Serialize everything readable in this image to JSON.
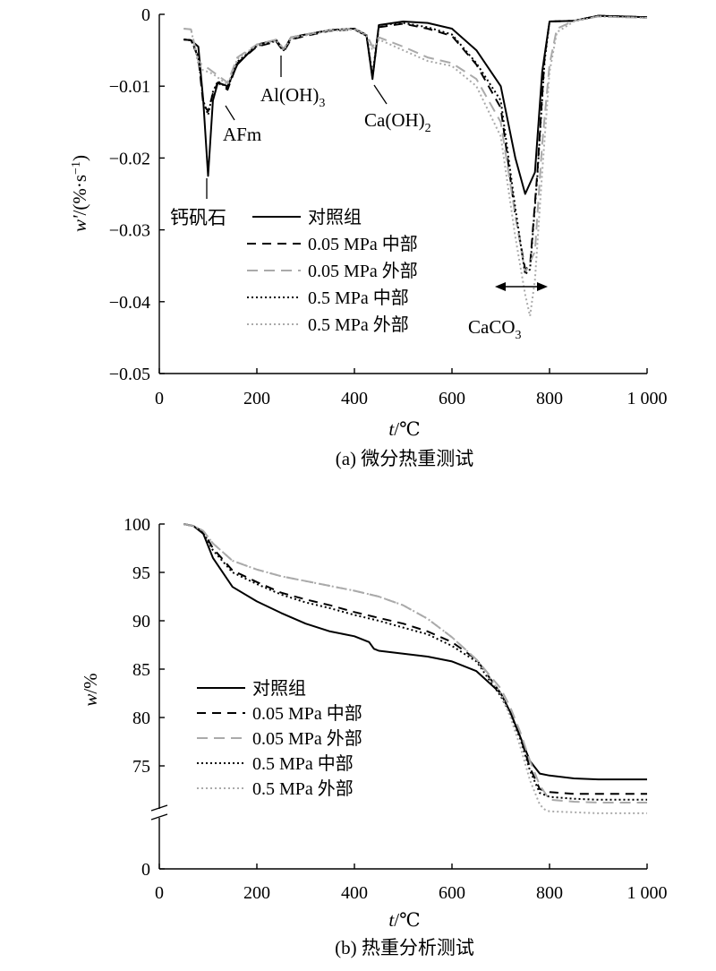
{
  "chart_data": [
    {
      "type": "line",
      "caption": "(a) 微分热重测试",
      "xlabel_var": "t",
      "xlabel_unit": "/℃",
      "ylabel_var": "w'",
      "ylabel_unit": "/(%·s",
      "ylabel_exp": "−1",
      "ylabel_close": ")",
      "xlim": [
        0,
        1000
      ],
      "ylim": [
        -0.05,
        0
      ],
      "x_ticks": [
        0,
        200,
        400,
        600,
        800,
        1000
      ],
      "x_tick_labels": [
        "0",
        "200",
        "400",
        "600",
        "800",
        "1 000"
      ],
      "y_ticks": [
        0,
        -0.01,
        -0.02,
        -0.03,
        -0.04,
        -0.05
      ],
      "y_tick_labels": [
        "0",
        "−0.01",
        "−0.02",
        "−0.03",
        "−0.04",
        "−0.05"
      ],
      "legend_position": "center",
      "annotations": {
        "ettringite": "钙矾石",
        "afm": "AFm",
        "aloh_main": "Al(OH)",
        "aloh_sub": "3",
        "caoh_main": "Ca(OH)",
        "caoh_sub": "2",
        "caco3_main": "CaCO",
        "caco3_sub": "3"
      },
      "series": [
        {
          "name": "对照组",
          "color": "#000000",
          "dash": "",
          "x": [
            50,
            65,
            80,
            90,
            100,
            110,
            120,
            140,
            160,
            200,
            240,
            255,
            270,
            300,
            350,
            400,
            425,
            437,
            450,
            500,
            550,
            600,
            650,
            700,
            730,
            750,
            770,
            785,
            800,
            850,
            900,
            950,
            1000
          ],
          "y": [
            -0.0035,
            -0.0036,
            -0.0045,
            -0.012,
            -0.0225,
            -0.012,
            -0.0095,
            -0.01,
            -0.007,
            -0.0042,
            -0.0036,
            -0.005,
            -0.0032,
            -0.0028,
            -0.0022,
            -0.002,
            -0.003,
            -0.009,
            -0.0015,
            -0.001,
            -0.0012,
            -0.002,
            -0.005,
            -0.01,
            -0.02,
            -0.025,
            -0.022,
            -0.008,
            -0.001,
            -0.0009,
            -0.0002,
            -0.0003,
            -0.0004
          ]
        },
        {
          "name": "0.05 MPa 中部",
          "color": "#000000",
          "dash": "10,7",
          "x": [
            50,
            65,
            80,
            90,
            100,
            110,
            120,
            140,
            160,
            200,
            240,
            255,
            270,
            300,
            350,
            400,
            425,
            437,
            450,
            500,
            550,
            600,
            650,
            700,
            730,
            750,
            760,
            775,
            790,
            800,
            850,
            900,
            950,
            1000
          ],
          "y": [
            -0.0035,
            -0.0036,
            -0.006,
            -0.0125,
            -0.0135,
            -0.011,
            -0.0095,
            -0.0105,
            -0.0068,
            -0.0045,
            -0.0038,
            -0.0052,
            -0.0035,
            -0.003,
            -0.0023,
            -0.0021,
            -0.003,
            -0.0088,
            -0.0018,
            -0.0013,
            -0.002,
            -0.003,
            -0.007,
            -0.013,
            -0.028,
            -0.0355,
            -0.035,
            -0.022,
            -0.006,
            -0.001,
            -0.0009,
            -0.0002,
            -0.0003,
            -0.0004
          ]
        },
        {
          "name": "0.05 MPa 外部",
          "color": "#aaaaaa",
          "dash": "12,7",
          "x": [
            50,
            65,
            80,
            90,
            100,
            110,
            120,
            140,
            160,
            200,
            240,
            255,
            270,
            300,
            350,
            400,
            425,
            437,
            450,
            500,
            550,
            600,
            650,
            700,
            730,
            750,
            770,
            785,
            800,
            815,
            850,
            900,
            950,
            1000
          ],
          "y": [
            -0.002,
            -0.0021,
            -0.0065,
            -0.0072,
            -0.0075,
            -0.008,
            -0.0085,
            -0.0095,
            -0.006,
            -0.0042,
            -0.0035,
            -0.0048,
            -0.0032,
            -0.0028,
            -0.0022,
            -0.002,
            -0.0028,
            -0.0045,
            -0.0032,
            -0.0045,
            -0.006,
            -0.0068,
            -0.009,
            -0.015,
            -0.028,
            -0.036,
            -0.033,
            -0.018,
            -0.007,
            -0.002,
            -0.0009,
            -0.0003,
            -0.0004,
            -0.0005
          ]
        },
        {
          "name": "0.5 MPa 中部",
          "color": "#000000",
          "dash": "2,3",
          "x": [
            50,
            65,
            80,
            90,
            100,
            110,
            120,
            140,
            160,
            200,
            240,
            255,
            270,
            300,
            350,
            400,
            425,
            437,
            450,
            500,
            550,
            600,
            650,
            700,
            730,
            750,
            760,
            775,
            790,
            800,
            850,
            900,
            950,
            1000
          ],
          "y": [
            -0.0035,
            -0.0036,
            -0.0058,
            -0.012,
            -0.014,
            -0.0108,
            -0.0093,
            -0.0103,
            -0.0066,
            -0.0044,
            -0.0037,
            -0.005,
            -0.0034,
            -0.0029,
            -0.0022,
            -0.002,
            -0.0029,
            -0.0085,
            -0.0015,
            -0.0012,
            -0.0018,
            -0.0028,
            -0.0068,
            -0.012,
            -0.027,
            -0.0362,
            -0.0355,
            -0.0225,
            -0.0065,
            -0.001,
            -0.0009,
            -0.0002,
            -0.0003,
            -0.0004
          ]
        },
        {
          "name": "0.5 MPa 外部",
          "color": "#aaaaaa",
          "dash": "2,3",
          "x": [
            50,
            65,
            80,
            90,
            100,
            110,
            120,
            140,
            160,
            200,
            240,
            255,
            270,
            300,
            350,
            400,
            425,
            437,
            450,
            500,
            550,
            600,
            650,
            700,
            730,
            750,
            760,
            770,
            785,
            800,
            815,
            850,
            900,
            950,
            1000
          ],
          "y": [
            -0.002,
            -0.0021,
            -0.007,
            -0.0078,
            -0.008,
            -0.0083,
            -0.0088,
            -0.0098,
            -0.0062,
            -0.0043,
            -0.0036,
            -0.005,
            -0.0033,
            -0.0029,
            -0.0023,
            -0.0021,
            -0.003,
            -0.005,
            -0.0035,
            -0.005,
            -0.0065,
            -0.0072,
            -0.01,
            -0.017,
            -0.031,
            -0.039,
            -0.042,
            -0.037,
            -0.022,
            -0.008,
            -0.0025,
            -0.001,
            -0.0003,
            -0.0004,
            -0.0005
          ]
        }
      ]
    },
    {
      "type": "line",
      "caption": "(b) 热重分析测试",
      "xlabel_var": "t",
      "xlabel_unit": "/℃",
      "ylabel_var": "w",
      "ylabel_unit": "/%",
      "xlim": [
        0,
        1000
      ],
      "ylim": [
        0,
        100
      ],
      "axis_break": true,
      "x_ticks": [
        0,
        200,
        400,
        600,
        800,
        1000
      ],
      "x_tick_labels": [
        "0",
        "200",
        "400",
        "600",
        "800",
        "1 000"
      ],
      "y_ticks": [
        100,
        95,
        90,
        85,
        80,
        75,
        0
      ],
      "y_tick_labels": [
        "100",
        "95",
        "90",
        "85",
        "80",
        "75",
        "0"
      ],
      "legend_position": "bottom-left",
      "series": [
        {
          "name": "对照组",
          "color": "#000000",
          "dash": "",
          "x": [
            50,
            70,
            90,
            110,
            150,
            200,
            250,
            300,
            350,
            400,
            430,
            440,
            450,
            500,
            550,
            600,
            650,
            700,
            720,
            740,
            760,
            780,
            800,
            850,
            900,
            1000
          ],
          "y": [
            100,
            99.8,
            99,
            96.5,
            93.5,
            92,
            90.8,
            89.7,
            88.9,
            88.4,
            87.8,
            87.1,
            86.9,
            86.6,
            86.3,
            85.8,
            84.8,
            82.5,
            80.5,
            78,
            75.5,
            74.2,
            74,
            73.7,
            73.6,
            73.6
          ]
        },
        {
          "name": "0.05 MPa 中部",
          "color": "#000000",
          "dash": "10,7",
          "x": [
            50,
            70,
            90,
            110,
            150,
            200,
            250,
            300,
            350,
            400,
            450,
            500,
            550,
            600,
            650,
            700,
            720,
            740,
            760,
            780,
            800,
            850,
            900,
            1000
          ],
          "y": [
            100,
            99.8,
            99.2,
            97.5,
            95.2,
            94,
            92.9,
            92.2,
            91.6,
            90.9,
            90.3,
            89.7,
            88.9,
            87.8,
            86,
            82.5,
            80.5,
            78,
            74.8,
            72.6,
            72.3,
            72.1,
            72.1,
            72.1
          ]
        },
        {
          "name": "0.05 MPa 外部",
          "color": "#aaaaaa",
          "dash": "12,7",
          "x": [
            50,
            70,
            90,
            110,
            150,
            200,
            250,
            300,
            350,
            400,
            450,
            500,
            550,
            600,
            650,
            700,
            720,
            740,
            760,
            780,
            800,
            850,
            900,
            1000
          ],
          "y": [
            100,
            99.8,
            99.3,
            98,
            96.2,
            95.3,
            94.6,
            94.1,
            93.6,
            93.1,
            92.5,
            91.6,
            90.2,
            88.3,
            86,
            83,
            81,
            78.5,
            75.5,
            73,
            71.5,
            71.3,
            71.2,
            71.2
          ]
        },
        {
          "name": "0.5 MPa 中部",
          "color": "#000000",
          "dash": "2,3",
          "x": [
            50,
            70,
            90,
            110,
            150,
            200,
            250,
            300,
            350,
            400,
            450,
            500,
            550,
            600,
            650,
            700,
            720,
            740,
            760,
            780,
            800,
            850,
            900,
            1000
          ],
          "y": [
            100,
            99.8,
            99.1,
            97.3,
            95,
            93.8,
            92.7,
            91.9,
            91.3,
            90.6,
            90,
            89.3,
            88.6,
            87.4,
            85.8,
            82.2,
            80.3,
            77.8,
            74.5,
            72.2,
            71.8,
            71.6,
            71.5,
            71.5
          ]
        },
        {
          "name": "0.5 MPa 外部",
          "color": "#aaaaaa",
          "dash": "2,3",
          "x": [
            50,
            70,
            90,
            110,
            150,
            200,
            250,
            300,
            350,
            400,
            450,
            500,
            550,
            600,
            650,
            700,
            720,
            740,
            760,
            780,
            790,
            800,
            850,
            900,
            1000
          ],
          "y": [
            100,
            99.8,
            99.3,
            98,
            96.2,
            95.3,
            94.6,
            94.1,
            93.6,
            93.1,
            92.5,
            91.6,
            90.2,
            88.3,
            86,
            82.5,
            80,
            77,
            73.5,
            71,
            70.5,
            70.3,
            70.2,
            70.1,
            70.1
          ]
        }
      ]
    }
  ]
}
